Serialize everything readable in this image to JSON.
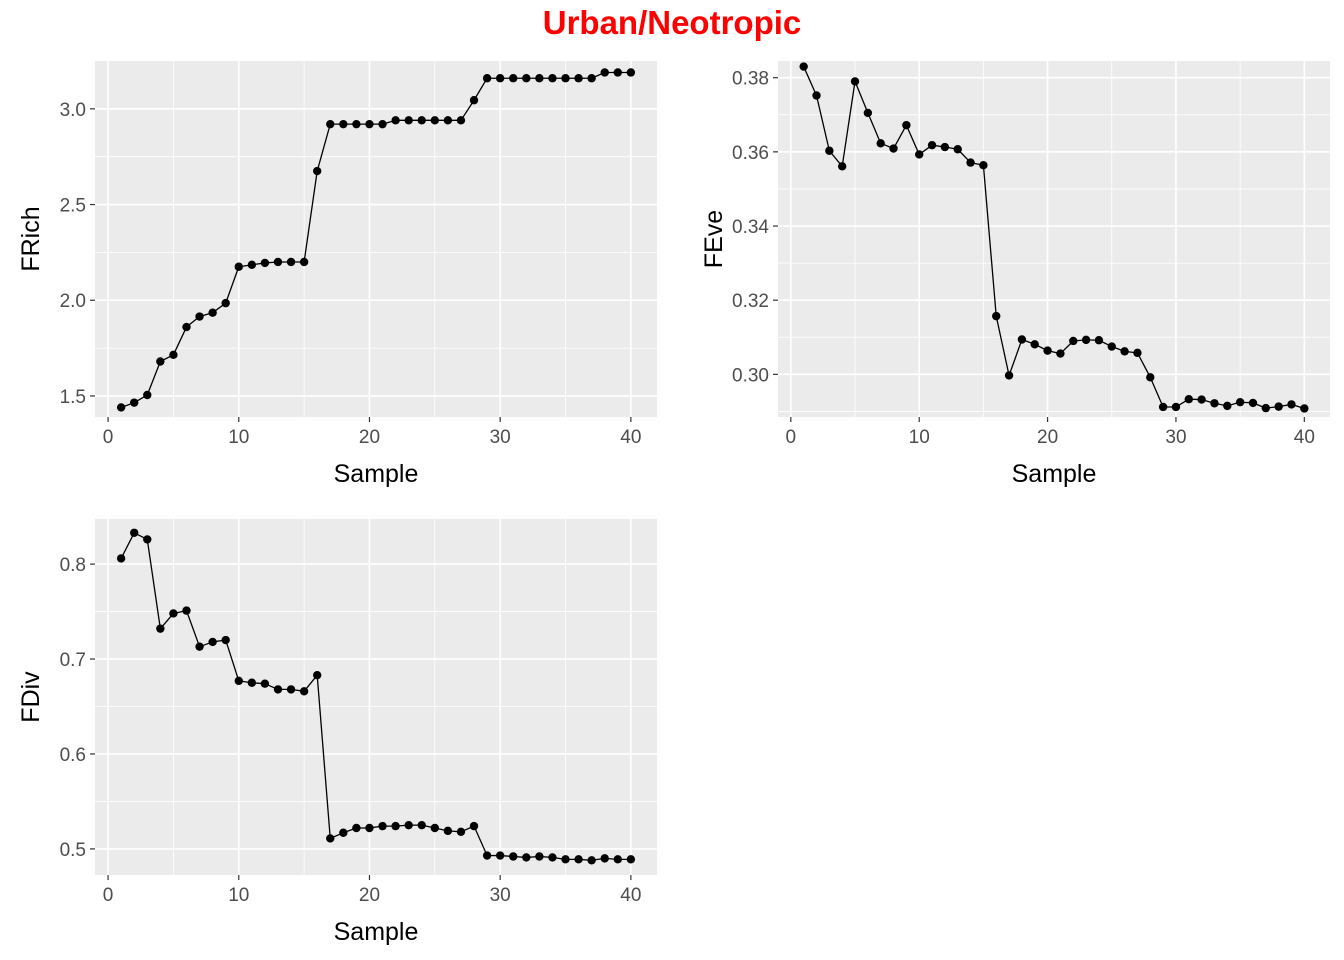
{
  "title": "Urban/Neotropic",
  "colors": {
    "title": "#ff0000",
    "panel_background": "#ebebeb",
    "grid": "#ffffff",
    "line": "#000000",
    "point": "#000000",
    "tick_text": "#4d4d4d",
    "tick_mark": "#333333"
  },
  "chart_data": [
    {
      "type": "line",
      "xlabel": "Sample",
      "ylabel": "FRich",
      "xlim": [
        -1,
        42
      ],
      "ylim": [
        1.39,
        3.25
      ],
      "x_ticks": [
        0,
        10,
        20,
        30,
        40
      ],
      "x_tick_labels": [
        "0",
        "10",
        "20",
        "30",
        "40"
      ],
      "y_ticks": [
        1.5,
        2.0,
        2.5,
        3.0
      ],
      "y_tick_labels": [
        "1.5",
        "2.0",
        "2.5",
        "3.0"
      ],
      "grid": true,
      "markers": true,
      "x": [
        1,
        2,
        3,
        4,
        5,
        6,
        7,
        8,
        9,
        10,
        11,
        12,
        13,
        14,
        15,
        16,
        17,
        18,
        19,
        20,
        21,
        22,
        23,
        24,
        25,
        26,
        27,
        28,
        29,
        30,
        31,
        32,
        33,
        34,
        35,
        36,
        37,
        38,
        39,
        40
      ],
      "y": [
        1.44,
        1.465,
        1.505,
        1.68,
        1.715,
        1.86,
        1.915,
        1.935,
        1.985,
        2.175,
        2.185,
        2.195,
        2.2,
        2.2,
        2.2,
        2.675,
        2.92,
        2.92,
        2.92,
        2.92,
        2.92,
        2.94,
        2.94,
        2.94,
        2.94,
        2.94,
        2.94,
        3.045,
        3.16,
        3.16,
        3.16,
        3.16,
        3.16,
        3.16,
        3.16,
        3.16,
        3.16,
        3.19,
        3.19,
        3.19
      ]
    },
    {
      "type": "line",
      "xlabel": "Sample",
      "ylabel": "FEve",
      "xlim": [
        -1,
        42
      ],
      "ylim": [
        0.2885,
        0.3845
      ],
      "x_ticks": [
        0,
        10,
        20,
        30,
        40
      ],
      "x_tick_labels": [
        "0",
        "10",
        "20",
        "30",
        "40"
      ],
      "y_ticks": [
        0.3,
        0.32,
        0.34,
        0.36,
        0.38
      ],
      "y_tick_labels": [
        "0.30",
        "0.32",
        "0.34",
        "0.36",
        "0.38"
      ],
      "grid": true,
      "markers": true,
      "x": [
        1,
        2,
        3,
        4,
        5,
        6,
        7,
        8,
        9,
        10,
        11,
        12,
        13,
        14,
        15,
        16,
        17,
        18,
        19,
        20,
        21,
        22,
        23,
        24,
        25,
        26,
        27,
        28,
        29,
        30,
        31,
        32,
        33,
        34,
        35,
        36,
        37,
        38,
        39,
        40
      ],
      "y": [
        0.383,
        0.3752,
        0.3603,
        0.3561,
        0.379,
        0.3705,
        0.3623,
        0.3609,
        0.3672,
        0.3593,
        0.3618,
        0.3613,
        0.3607,
        0.3571,
        0.3564,
        0.3157,
        0.2997,
        0.3094,
        0.3081,
        0.3064,
        0.3056,
        0.309,
        0.3093,
        0.3092,
        0.3075,
        0.3062,
        0.3058,
        0.2992,
        0.2912,
        0.2912,
        0.2933,
        0.2932,
        0.2922,
        0.2915,
        0.2925,
        0.2923,
        0.2909,
        0.2913,
        0.2919,
        0.2908
      ]
    },
    {
      "type": "line",
      "xlabel": "Sample",
      "ylabel": "FDiv",
      "xlim": [
        -1,
        42
      ],
      "ylim": [
        0.4725,
        0.8475
      ],
      "x_ticks": [
        0,
        10,
        20,
        30,
        40
      ],
      "x_tick_labels": [
        "0",
        "10",
        "20",
        "30",
        "40"
      ],
      "y_ticks": [
        0.5,
        0.6,
        0.7,
        0.8
      ],
      "y_tick_labels": [
        "0.5",
        "0.6",
        "0.7",
        "0.8"
      ],
      "grid": true,
      "markers": true,
      "x": [
        1,
        2,
        3,
        4,
        5,
        6,
        7,
        8,
        9,
        10,
        11,
        12,
        13,
        14,
        15,
        16,
        17,
        18,
        19,
        20,
        21,
        22,
        23,
        24,
        25,
        26,
        27,
        28,
        29,
        30,
        31,
        32,
        33,
        34,
        35,
        36,
        37,
        38,
        39,
        40
      ],
      "y": [
        0.806,
        0.833,
        0.826,
        0.732,
        0.748,
        0.751,
        0.713,
        0.718,
        0.72,
        0.677,
        0.675,
        0.674,
        0.668,
        0.668,
        0.666,
        0.683,
        0.511,
        0.517,
        0.522,
        0.522,
        0.524,
        0.524,
        0.525,
        0.525,
        0.522,
        0.519,
        0.518,
        0.524,
        0.493,
        0.493,
        0.492,
        0.491,
        0.492,
        0.491,
        0.489,
        0.489,
        0.488,
        0.49,
        0.489,
        0.489
      ]
    }
  ]
}
